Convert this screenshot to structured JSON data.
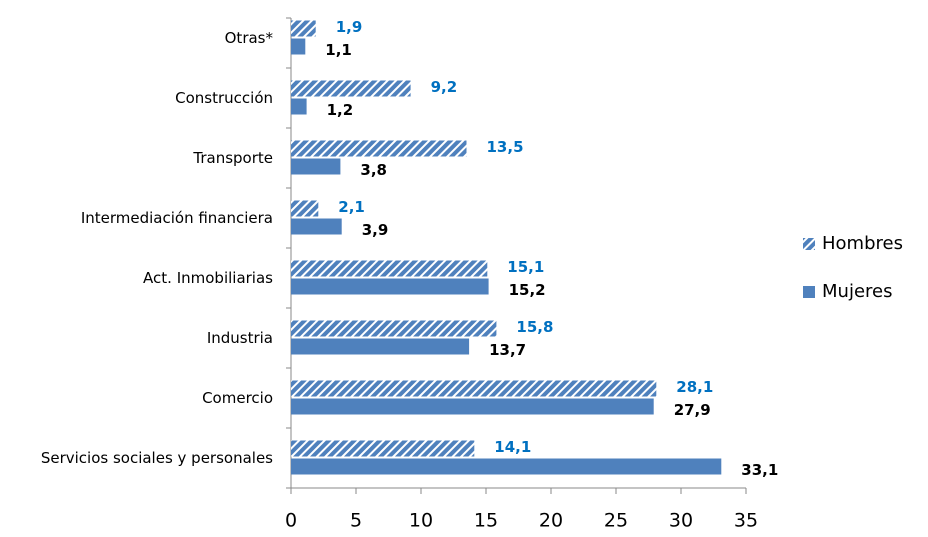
{
  "chart_data": {
    "type": "bar",
    "orientation": "horizontal",
    "categories": [
      "Otras*",
      "Construcción",
      "Transporte",
      "Intermediación financiera",
      "Act. Inmobiliarias",
      "Industria",
      "Comercio",
      "Servicios sociales y personales"
    ],
    "series": [
      {
        "name": "Hombres",
        "color": "#4f81bd",
        "hatch": true,
        "label_color": "#0070c0",
        "values": [
          1.9,
          9.2,
          13.5,
          2.1,
          15.1,
          15.8,
          28.1,
          14.1
        ],
        "value_labels": [
          "1,9",
          "9,2",
          "13,5",
          "2,1",
          "15,1",
          "15,8",
          "28,1",
          "14,1"
        ]
      },
      {
        "name": "Mujeres",
        "color": "#4f81bd",
        "hatch": false,
        "label_color": "#000000",
        "values": [
          1.1,
          1.2,
          3.8,
          3.9,
          15.2,
          13.7,
          27.9,
          33.1
        ],
        "value_labels": [
          "1,1",
          "1,2",
          "3,8",
          "3,9",
          "15,2",
          "13,7",
          "27,9",
          "33,1"
        ]
      }
    ],
    "xlim": [
      0,
      35
    ],
    "xticks": [
      0,
      5,
      10,
      15,
      20,
      25,
      30,
      35
    ],
    "grid": false,
    "legend": "right"
  }
}
